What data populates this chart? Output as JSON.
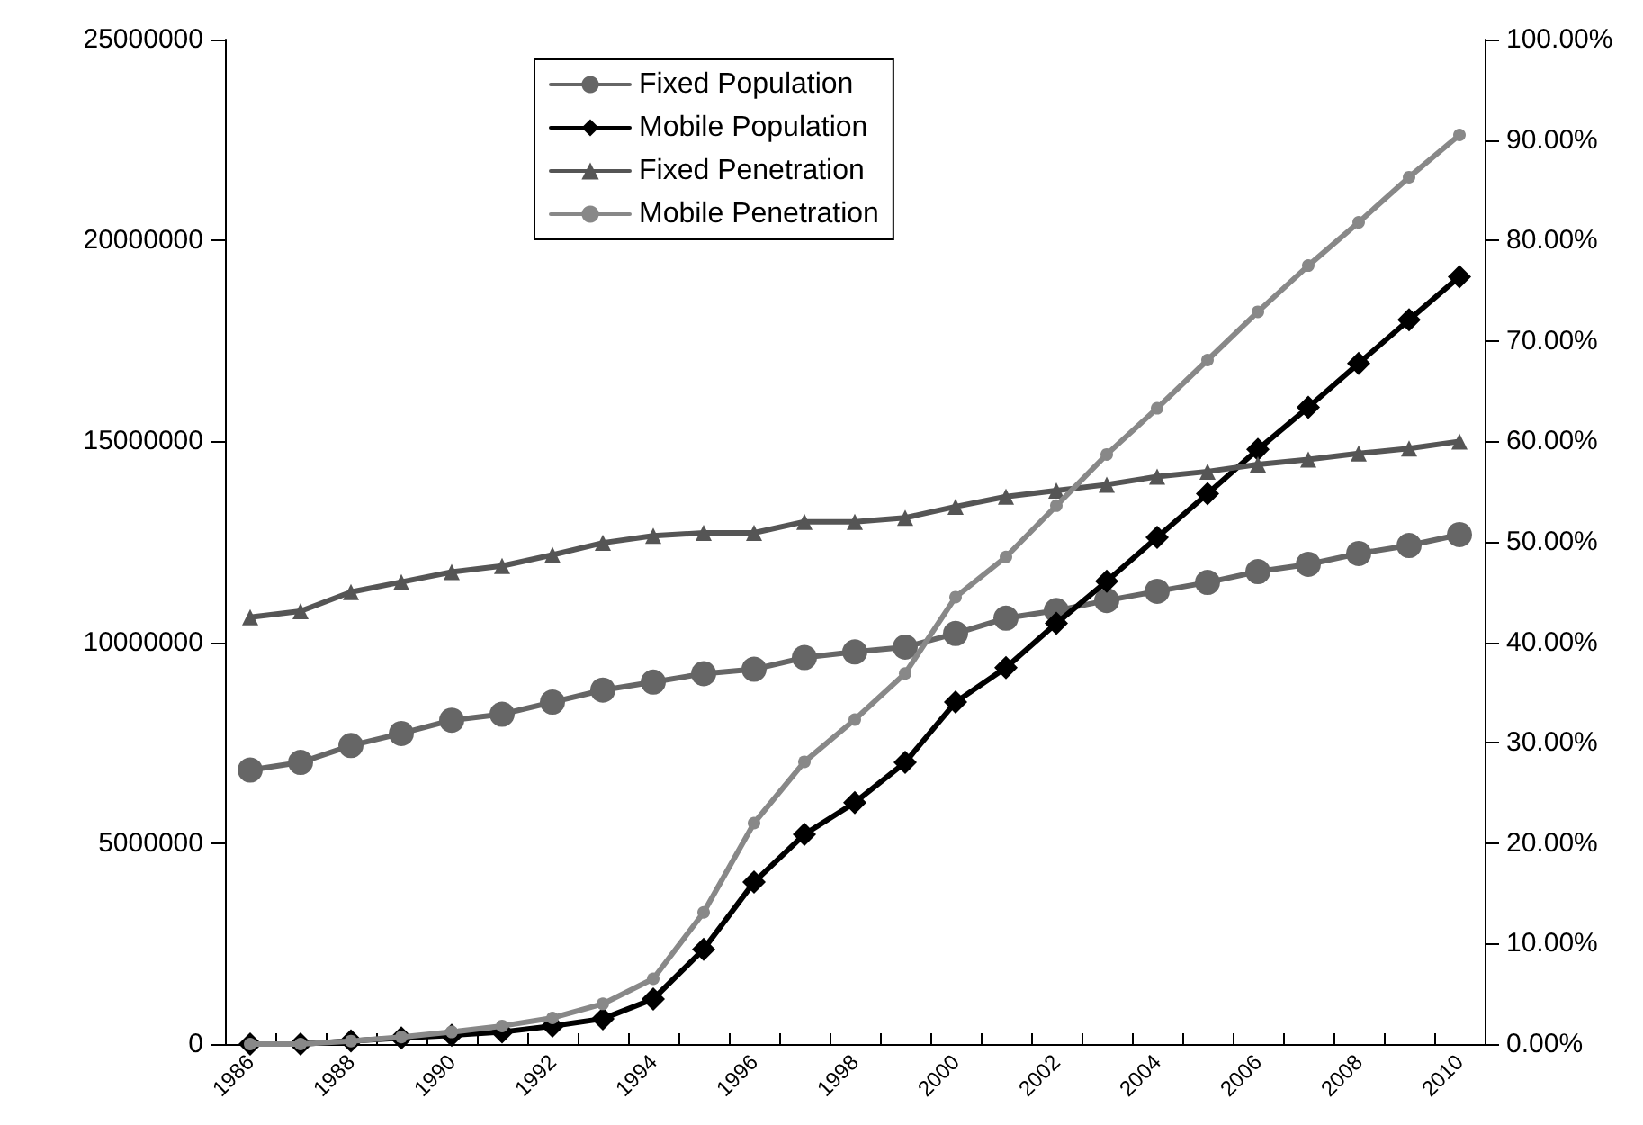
{
  "chart_data": {
    "type": "line",
    "categories": [
      "1986",
      null,
      "1988",
      null,
      "1990",
      null,
      "1992",
      null,
      "1994",
      null,
      "1996",
      null,
      "1998",
      null,
      "2000",
      null,
      "2002",
      null,
      "2004",
      null,
      "2006",
      null,
      "2008",
      null,
      "2010"
    ],
    "series": [
      {
        "name": "Fixed Population",
        "color": "#666666",
        "marker": "circle",
        "values": [
          6820000,
          7010000,
          7430000,
          7730000,
          8060000,
          8210000,
          8510000,
          8810000,
          9010000,
          9220000,
          9330000,
          9620000,
          9760000,
          9880000,
          10220000,
          10600000,
          10790000,
          11040000,
          11270000,
          11490000,
          11760000,
          11940000,
          12210000,
          12410000,
          12680000
        ]
      },
      {
        "name": "Mobile Population",
        "color": "#000000",
        "marker": "diamond",
        "values": [
          0,
          0,
          80000,
          150000,
          220000,
          300000,
          450000,
          630000,
          1120000,
          2360000,
          4030000,
          5220000,
          6010000,
          7010000,
          8510000,
          9370000,
          10470000,
          11520000,
          12610000,
          13700000,
          14800000,
          15850000,
          16940000,
          18030000,
          19100000
        ]
      },
      {
        "name": "Fixed Penetration",
        "color": "#555555",
        "marker": "triangle",
        "axis": "y2",
        "values": [
          42.5,
          43.1,
          45.0,
          46.0,
          47.0,
          47.6,
          48.7,
          49.9,
          50.6,
          50.9,
          50.9,
          52.0,
          52.0,
          52.4,
          53.5,
          54.5,
          55.1,
          55.7,
          56.5,
          57.0,
          57.7,
          58.2,
          58.8,
          59.3,
          60.0
        ]
      },
      {
        "name": "Mobile Penetration",
        "color": "#888888",
        "marker": "circle",
        "axis": "y2",
        "values": [
          0,
          0,
          0.3,
          0.7,
          1.2,
          1.8,
          2.6,
          4.0,
          6.5,
          13.1,
          22.0,
          28.1,
          32.3,
          36.9,
          44.5,
          48.5,
          53.6,
          58.7,
          63.3,
          68.1,
          72.9,
          77.5,
          81.8,
          86.3,
          90.5
        ]
      }
    ],
    "ylim": [
      0,
      25000000
    ],
    "yticks": [
      0,
      5000000,
      10000000,
      15000000,
      20000000,
      25000000
    ],
    "y2lim": [
      0,
      100
    ],
    "y2ticks": [
      {
        "value": 0,
        "label": "0.00%"
      },
      {
        "value": 10,
        "label": "10.00%"
      },
      {
        "value": 20,
        "label": "20.00%"
      },
      {
        "value": 30,
        "label": "30.00%"
      },
      {
        "value": 40,
        "label": "40.00%"
      },
      {
        "value": 50,
        "label": "50.00%"
      },
      {
        "value": 60,
        "label": "60.00%"
      },
      {
        "value": 70,
        "label": "70.00%"
      },
      {
        "value": 80,
        "label": "80.00%"
      },
      {
        "value": 90,
        "label": "90.00%"
      },
      {
        "value": 100,
        "label": "100.00%"
      }
    ],
    "legend": "top",
    "grid": false
  }
}
